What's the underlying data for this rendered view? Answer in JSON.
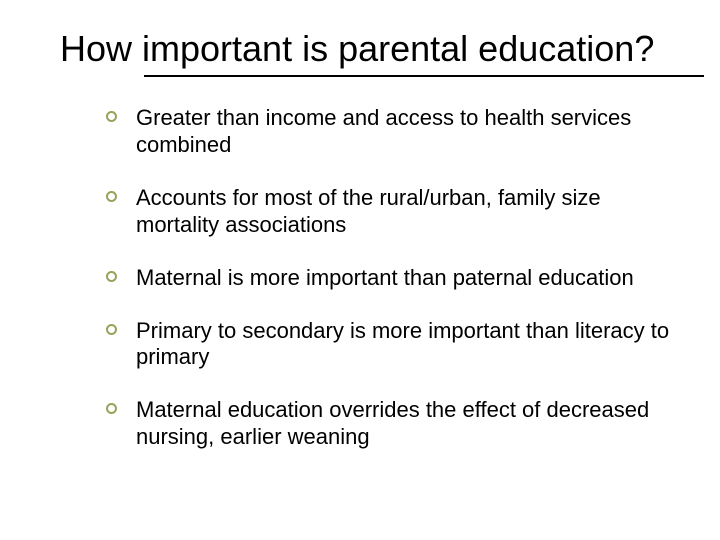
{
  "title": "How important is parental education?",
  "title_fontsize": 36,
  "body_fontsize": 22,
  "text_color": "#000000",
  "background_color": "#ffffff",
  "bullet_ring_color": "#98a35a",
  "rule_color": "#000000",
  "bullets": [
    "Greater than income and access to health services combined",
    "Accounts for most of the rural/urban, family size mortality associations",
    "Maternal is more important than paternal education",
    "Primary to secondary is more important than literacy to primary",
    "Maternal education overrides the effect of decreased nursing, earlier weaning"
  ]
}
